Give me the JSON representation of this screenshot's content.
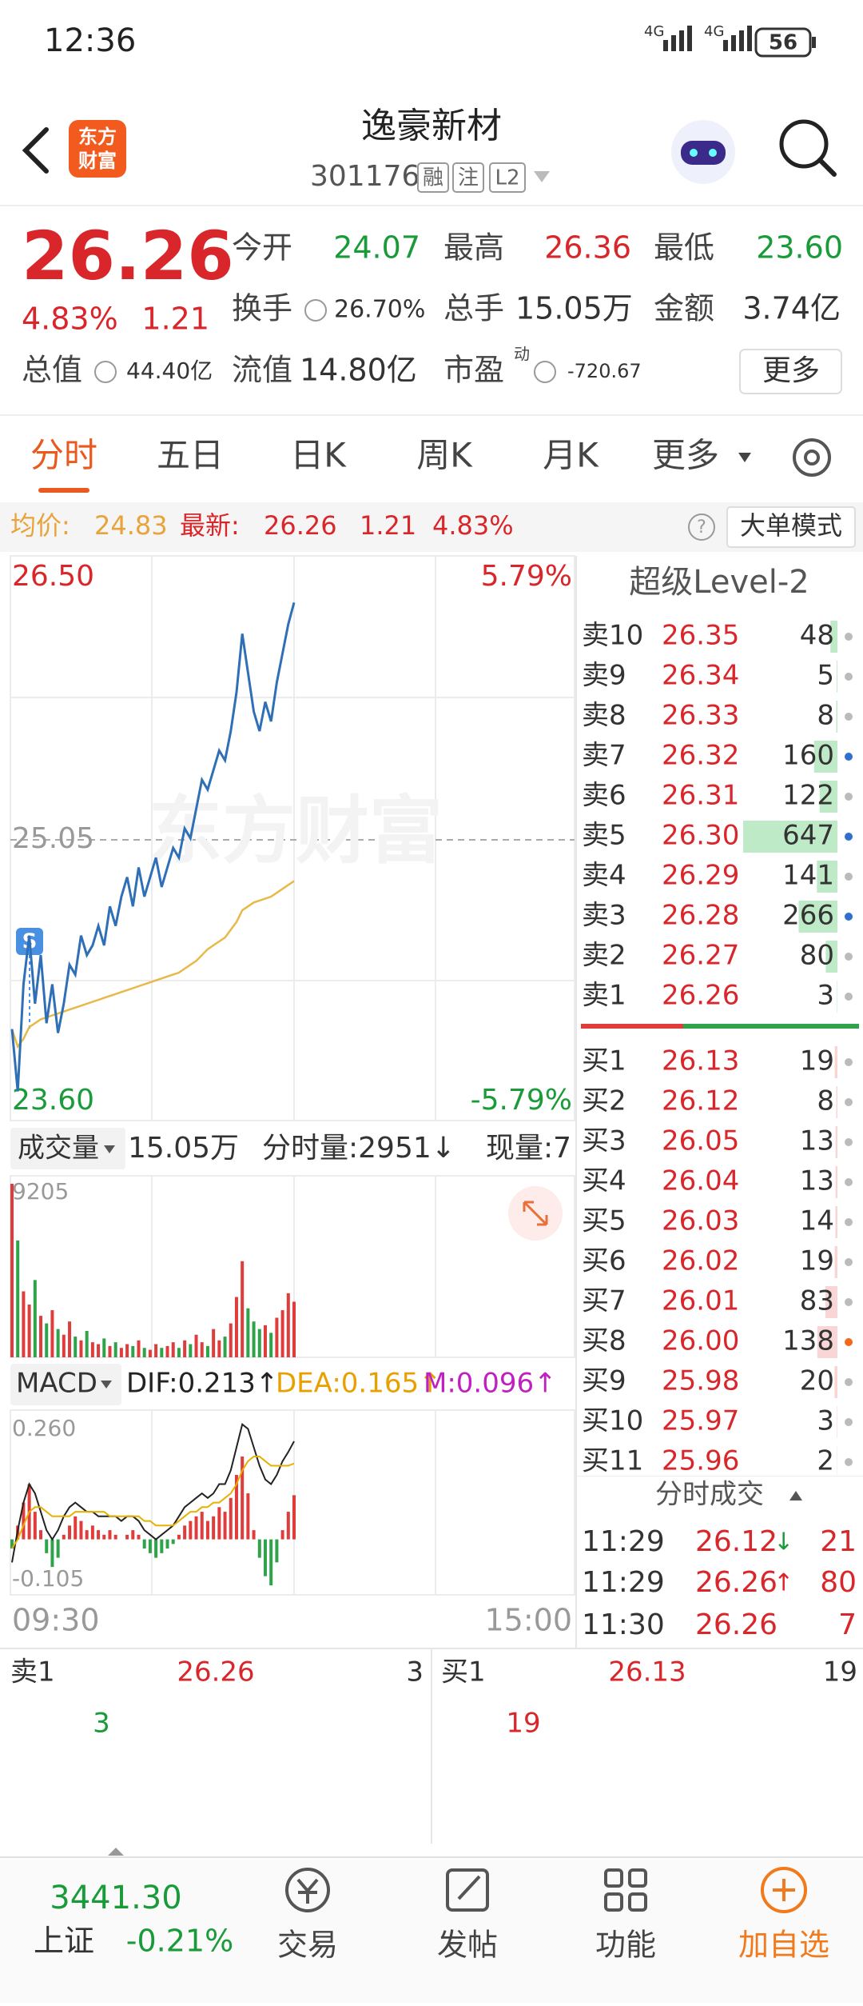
{
  "status_bar": {
    "time": "12:36",
    "network1": "4G",
    "network2": "4G",
    "battery": "56"
  },
  "header": {
    "logo": [
      "东方",
      "财富"
    ],
    "name": "逸豪新材",
    "code": "301176",
    "badges": [
      "融",
      "注",
      "L2"
    ]
  },
  "quote": {
    "price": "26.26",
    "change_pct": "4.83%",
    "change": "1.21",
    "stats": [
      {
        "label": "今开",
        "value": "24.07"
      },
      {
        "label": "最高",
        "value": "26.36"
      },
      {
        "label": "最低",
        "value": "23.60"
      },
      {
        "label": "换手",
        "value": "26.70%"
      },
      {
        "label": "总手",
        "value": "15.05万"
      },
      {
        "label": "金额",
        "value": "3.74亿"
      },
      {
        "label": "总值",
        "value": "44.40亿"
      },
      {
        "label": "流值",
        "value": "14.80亿"
      },
      {
        "label": "市盈",
        "superscript": "动",
        "value": "-720.67"
      }
    ],
    "more": "更多"
  },
  "tabs": [
    "分时",
    "五日",
    "日K",
    "周K",
    "月K",
    "更多"
  ],
  "info_bar": {
    "avg_label": "均价:",
    "avg": "24.83",
    "latest_label": "最新:",
    "latest": "26.26",
    "change": "1.21",
    "change_pct": "4.83%",
    "mode": "大单模式"
  },
  "intraday": {
    "watermark": "东方财富",
    "y_max": "26.50",
    "y_mid": "25.05",
    "y_min": "23.60",
    "pct_max": "5.79%",
    "pct_min": "-5.79%",
    "start_time": "09:30",
    "end_time": "15:00",
    "marker": "S",
    "ylim": [
      23.6,
      26.5
    ],
    "price": [
      24.07,
      23.75,
      24.3,
      24.55,
      24.2,
      24.45,
      24.1,
      24.3,
      24.05,
      24.2,
      24.4,
      24.35,
      24.55,
      24.45,
      24.5,
      24.6,
      24.5,
      24.7,
      24.6,
      24.75,
      24.85,
      24.7,
      24.9,
      24.75,
      24.85,
      24.95,
      24.8,
      24.9,
      25.0,
      24.95,
      25.1,
      25.05,
      25.2,
      25.35,
      25.3,
      25.4,
      25.5,
      25.45,
      25.6,
      25.8,
      26.1,
      25.9,
      25.7,
      25.6,
      25.75,
      25.65,
      25.85,
      26.0,
      26.15,
      26.26
    ],
    "average": [
      24.07,
      23.98,
      24.02,
      24.08,
      24.1,
      24.12,
      24.13,
      24.14,
      24.15,
      24.16,
      24.17,
      24.18,
      24.19,
      24.2,
      24.21,
      24.22,
      24.23,
      24.24,
      24.25,
      24.26,
      24.27,
      24.28,
      24.29,
      24.3,
      24.31,
      24.32,
      24.33,
      24.34,
      24.35,
      24.36,
      24.38,
      24.4,
      24.42,
      24.45,
      24.48,
      24.5,
      24.52,
      24.54,
      24.58,
      24.62,
      24.68,
      24.7,
      24.72,
      24.73,
      24.74,
      24.75,
      24.77,
      24.79,
      24.81,
      24.83
    ]
  },
  "volume": {
    "selector": "成交量",
    "total": "15.05万",
    "period_label": "分时量:2951↓",
    "current": "现量:7",
    "max_label": "9205",
    "ylim": [
      0,
      9205
    ],
    "values": [
      9205,
      6200,
      3500,
      2800,
      4100,
      2200,
      1800,
      2500,
      1500,
      1200,
      1900,
      1100,
      900,
      1400,
      800,
      700,
      1000,
      600,
      800,
      500,
      700,
      600,
      900,
      500,
      400,
      700,
      500,
      600,
      800,
      500,
      900,
      700,
      1200,
      800,
      600,
      1500,
      900,
      1100,
      1800,
      3200,
      5100,
      2600,
      1900,
      1500,
      1700,
      1300,
      2100,
      2500,
      3400,
      2951
    ]
  },
  "macd": {
    "selector": "MACD",
    "dif": "DIF:0.213↑",
    "dea": "DEA:0.165↑",
    "m": "M:0.096↑",
    "max_label": "0.260",
    "min_label": "-0.105",
    "ylim": [
      -0.105,
      0.26
    ],
    "histogram": [
      -0.02,
      0.03,
      0.08,
      0.12,
      0.06,
      0.02,
      -0.03,
      -0.06,
      -0.04,
      0.01,
      0.03,
      0.05,
      0.04,
      0.02,
      0.03,
      0.02,
      0.01,
      0.02,
      0.01,
      0.0,
      0.01,
      0.02,
      0.01,
      -0.02,
      -0.03,
      -0.04,
      -0.03,
      -0.02,
      -0.01,
      0.01,
      0.03,
      0.04,
      0.05,
      0.06,
      0.04,
      0.05,
      0.07,
      0.06,
      0.09,
      0.14,
      0.18,
      0.1,
      0.02,
      -0.04,
      -0.08,
      -0.1,
      -0.05,
      0.02,
      0.06,
      0.096
    ],
    "dif_line": [
      -0.05,
      0.02,
      0.08,
      0.12,
      0.1,
      0.06,
      0.02,
      0.0,
      0.02,
      0.05,
      0.07,
      0.08,
      0.07,
      0.06,
      0.06,
      0.05,
      0.05,
      0.05,
      0.05,
      0.04,
      0.05,
      0.05,
      0.04,
      0.02,
      0.01,
      0.0,
      0.01,
      0.02,
      0.03,
      0.05,
      0.07,
      0.08,
      0.09,
      0.1,
      0.09,
      0.1,
      0.12,
      0.12,
      0.15,
      0.2,
      0.25,
      0.24,
      0.2,
      0.16,
      0.13,
      0.12,
      0.14,
      0.17,
      0.19,
      0.213
    ],
    "dea_line": [
      -0.02,
      0.0,
      0.03,
      0.06,
      0.07,
      0.07,
      0.06,
      0.05,
      0.05,
      0.05,
      0.05,
      0.06,
      0.06,
      0.06,
      0.06,
      0.06,
      0.06,
      0.05,
      0.05,
      0.05,
      0.05,
      0.05,
      0.05,
      0.04,
      0.04,
      0.03,
      0.03,
      0.03,
      0.03,
      0.04,
      0.05,
      0.06,
      0.06,
      0.07,
      0.07,
      0.08,
      0.08,
      0.09,
      0.1,
      0.12,
      0.15,
      0.17,
      0.18,
      0.18,
      0.17,
      0.16,
      0.16,
      0.16,
      0.16,
      0.165
    ]
  },
  "order_book": {
    "title": "超级Level-2",
    "asks": [
      {
        "label": "卖10",
        "price": "26.35",
        "volume": 48
      },
      {
        "label": "卖9",
        "price": "26.34",
        "volume": 5
      },
      {
        "label": "卖8",
        "price": "26.33",
        "volume": 8
      },
      {
        "label": "卖7",
        "price": "26.32",
        "volume": 160
      },
      {
        "label": "卖6",
        "price": "26.31",
        "volume": 122
      },
      {
        "label": "卖5",
        "price": "26.30",
        "volume": 647
      },
      {
        "label": "卖4",
        "price": "26.29",
        "volume": 141
      },
      {
        "label": "卖3",
        "price": "26.28",
        "volume": 266
      },
      {
        "label": "卖2",
        "price": "26.27",
        "volume": 80
      },
      {
        "label": "卖1",
        "price": "26.26",
        "volume": 3
      }
    ],
    "bids": [
      {
        "label": "买1",
        "price": "26.13",
        "volume": 19
      },
      {
        "label": "买2",
        "price": "26.12",
        "volume": 8
      },
      {
        "label": "买3",
        "price": "26.05",
        "volume": 13
      },
      {
        "label": "买4",
        "price": "26.04",
        "volume": 13
      },
      {
        "label": "买5",
        "price": "26.03",
        "volume": 14
      },
      {
        "label": "买6",
        "price": "26.02",
        "volume": 19
      },
      {
        "label": "买7",
        "price": "26.01",
        "volume": 83
      },
      {
        "label": "买8",
        "price": "26.00",
        "volume": 138
      },
      {
        "label": "买9",
        "price": "25.98",
        "volume": 20
      },
      {
        "label": "买10",
        "price": "25.97",
        "volume": 3
      },
      {
        "label": "买11",
        "price": "25.96",
        "volume": 2
      }
    ]
  },
  "trades": {
    "title": "分时成交",
    "rows": [
      {
        "time": "11:29",
        "price": "26.12",
        "arrow": "↓",
        "volume": "21"
      },
      {
        "time": "11:29",
        "price": "26.26",
        "arrow": "↑",
        "volume": "80"
      },
      {
        "time": "11:30",
        "price": "26.26",
        "volume": "7"
      }
    ]
  },
  "best": {
    "ask_label": "卖1",
    "ask_price": "26.26",
    "ask_volume": "3",
    "bid_label": "买1",
    "bid_price": "26.13",
    "bid_volume": "19",
    "ask_qty": "3",
    "bid_qty": "19"
  },
  "bottom_nav": {
    "index_value": "3441.30",
    "index_name": "上证",
    "index_change": "-0.21%",
    "items": [
      "交易",
      "发帖",
      "功能",
      "加自选"
    ]
  }
}
